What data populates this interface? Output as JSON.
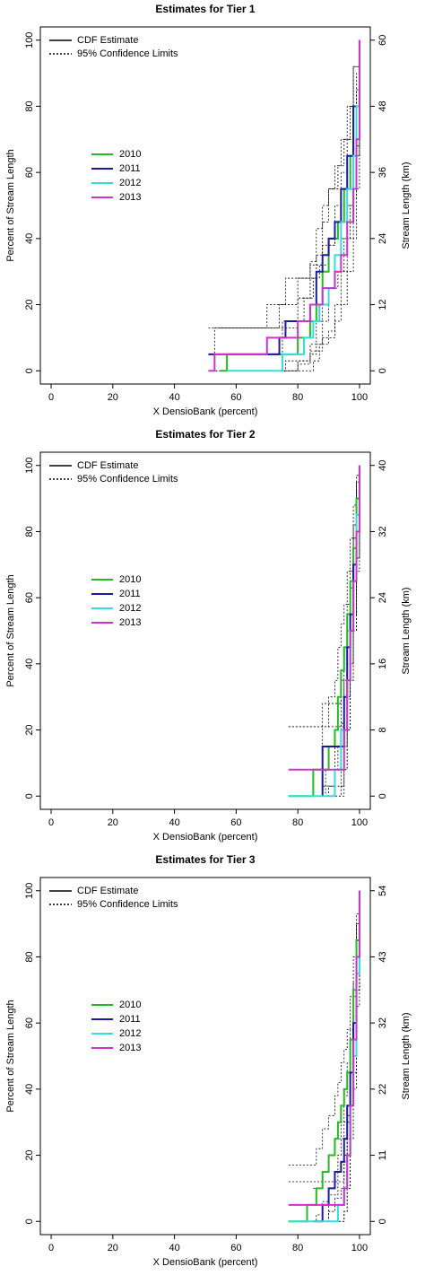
{
  "chart_data": [
    {
      "type": "step",
      "title": "Estimates for Tier 1",
      "x_label": "X DensioBank (percent)",
      "y_label": "Percent of Stream Length",
      "y2_label": "Stream Length (km)",
      "xlim": [
        -3.5,
        103.5
      ],
      "xticks": [
        0,
        20,
        40,
        60,
        80,
        100
      ],
      "ylim": [
        -4,
        104
      ],
      "yticks": [
        0,
        20,
        40,
        60,
        80,
        100
      ],
      "y2lim": [
        -2.4,
        62.4
      ],
      "y2ticks": [
        0,
        12,
        24,
        36,
        48,
        60
      ],
      "style_legend": [
        {
          "label": "CDF Estimate",
          "dash": false
        },
        {
          "label": "95% Confidence Limits",
          "dash": true
        }
      ],
      "series": [
        {
          "name": "2010",
          "color": "#22bb22",
          "x": [
            55,
            57,
            75,
            80,
            84,
            86,
            88,
            90,
            93,
            95,
            97,
            98,
            100
          ],
          "values": [
            0,
            5,
            5,
            10,
            15,
            20,
            30,
            40,
            45,
            55,
            65,
            80,
            100
          ],
          "lower": [
            0,
            0,
            0,
            2,
            5,
            8,
            15,
            25,
            30,
            40,
            50,
            65,
            100
          ],
          "upper": [
            13,
            13,
            13,
            22,
            28,
            35,
            45,
            55,
            62,
            70,
            80,
            92,
            100
          ]
        },
        {
          "name": "2011",
          "color": "#1a1aa0",
          "x": [
            51,
            74,
            76,
            82,
            84,
            86,
            88,
            90,
            92,
            94,
            96,
            98,
            100
          ],
          "values": [
            5,
            10,
            15,
            15,
            20,
            30,
            35,
            40,
            45,
            55,
            65,
            80,
            100
          ],
          "lower": [
            0,
            0,
            3,
            3,
            8,
            15,
            20,
            25,
            30,
            40,
            50,
            65,
            100
          ],
          "upper": [
            13,
            20,
            28,
            28,
            33,
            43,
            50,
            55,
            62,
            70,
            80,
            92,
            100
          ]
        },
        {
          "name": "2012",
          "color": "#33dddd",
          "x": [
            57,
            75,
            82,
            85,
            87,
            90,
            92,
            94,
            96,
            98,
            99,
            100
          ],
          "values": [
            0,
            5,
            10,
            15,
            20,
            25,
            35,
            45,
            55,
            65,
            80,
            100
          ],
          "lower": [
            0,
            0,
            0,
            3,
            8,
            12,
            20,
            30,
            40,
            52,
            68,
            100
          ],
          "upper": [
            5,
            15,
            22,
            28,
            32,
            38,
            50,
            60,
            70,
            80,
            90,
            100
          ]
        },
        {
          "name": "2013",
          "color": "#cc33cc",
          "x": [
            51,
            53,
            70,
            80,
            84,
            88,
            92,
            94,
            96,
            98,
            99,
            100
          ],
          "values": [
            0,
            5,
            10,
            15,
            20,
            25,
            30,
            35,
            45,
            55,
            70,
            100
          ],
          "lower": [
            0,
            0,
            0,
            3,
            6,
            10,
            15,
            20,
            30,
            40,
            55,
            100
          ],
          "upper": [
            5,
            13,
            20,
            28,
            32,
            38,
            45,
            50,
            60,
            70,
            85,
            100
          ]
        }
      ]
    },
    {
      "type": "step",
      "title": "Estimates for Tier 2",
      "x_label": "X DensioBank (percent)",
      "y_label": "Percent of Stream Length",
      "y2_label": "Stream Length (km)",
      "xlim": [
        -3.5,
        103.5
      ],
      "xticks": [
        0,
        20,
        40,
        60,
        80,
        100
      ],
      "ylim": [
        -4,
        104
      ],
      "yticks": [
        0,
        20,
        40,
        60,
        80,
        100
      ],
      "y2lim": [
        -1.6,
        41.6
      ],
      "y2ticks": [
        0,
        8,
        16,
        24,
        32,
        40
      ],
      "style_legend": [
        {
          "label": "CDF Estimate",
          "dash": false
        },
        {
          "label": "95% Confidence Limits",
          "dash": true
        }
      ],
      "series": [
        {
          "name": "2010",
          "color": "#22bb22",
          "x": [
            77,
            85,
            90,
            92,
            93,
            94,
            95,
            96,
            97,
            98,
            99,
            100
          ],
          "values": [
            0,
            8,
            15,
            20,
            30,
            38,
            45,
            55,
            65,
            75,
            90,
            100
          ],
          "lower": [
            0,
            0,
            3,
            8,
            15,
            22,
            30,
            40,
            50,
            62,
            80,
            100
          ],
          "upper": [
            21,
            21,
            30,
            35,
            45,
            52,
            58,
            68,
            78,
            88,
            97,
            100
          ]
        },
        {
          "name": "2011",
          "color": "#1a1aa0",
          "x": [
            88,
            88,
            94,
            95,
            96,
            97,
            98,
            99,
            100
          ],
          "values": [
            0,
            15,
            15,
            30,
            45,
            55,
            70,
            85,
            100
          ],
          "lower": [
            0,
            3,
            3,
            15,
            30,
            40,
            55,
            72,
            100
          ],
          "upper": [
            8,
            28,
            30,
            45,
            58,
            68,
            82,
            95,
            100
          ]
        },
        {
          "name": "2012",
          "color": "#33dddd",
          "x": [
            77,
            89,
            92,
            94,
            96,
            97,
            98,
            99,
            100
          ],
          "values": [
            0,
            0,
            8,
            20,
            35,
            50,
            65,
            85,
            100
          ],
          "lower": [
            0,
            0,
            0,
            8,
            20,
            35,
            50,
            72,
            100
          ],
          "upper": [
            0,
            8,
            20,
            35,
            50,
            63,
            78,
            95,
            100
          ]
        },
        {
          "name": "2013",
          "color": "#cc33cc",
          "x": [
            77,
            93,
            95,
            96,
            97,
            98,
            99,
            100
          ],
          "values": [
            8,
            8,
            20,
            35,
            50,
            65,
            80,
            100
          ],
          "lower": [
            0,
            0,
            8,
            20,
            35,
            50,
            68,
            100
          ],
          "upper": [
            21,
            21,
            35,
            50,
            63,
            78,
            92,
            100
          ]
        }
      ]
    },
    {
      "type": "step",
      "title": "Estimates for Tier 3",
      "x_label": "X DensioBank (percent)",
      "y_label": "Percent of Stream Length",
      "y2_label": "Stream Length (km)",
      "xlim": [
        -3.5,
        103.5
      ],
      "xticks": [
        0,
        20,
        40,
        60,
        80,
        100
      ],
      "ylim": [
        -4,
        104
      ],
      "yticks": [
        0,
        20,
        40,
        60,
        80,
        100
      ],
      "y2lim": [
        -2.16,
        56.16
      ],
      "y2ticks": [
        0,
        {
          "value": 10.8,
          "label": "11"
        },
        {
          "value": 21.6,
          "label": "22"
        },
        {
          "value": 32.4,
          "label": "32"
        },
        {
          "value": 43.2,
          "label": "43"
        },
        54
      ],
      "style_legend": [
        {
          "label": "CDF Estimate",
          "dash": false
        },
        {
          "label": "95% Confidence Limits",
          "dash": true
        }
      ],
      "series": [
        {
          "name": "2010",
          "color": "#22bb22",
          "x": [
            77,
            83,
            86,
            88,
            90,
            92,
            93,
            94,
            95,
            96,
            97,
            98,
            99,
            100
          ],
          "values": [
            0,
            5,
            10,
            15,
            20,
            25,
            30,
            35,
            40,
            45,
            55,
            70,
            85,
            100
          ],
          "lower": [
            0,
            0,
            2,
            6,
            10,
            15,
            20,
            25,
            30,
            35,
            45,
            60,
            75,
            100
          ],
          "upper": [
            17,
            17,
            22,
            28,
            32,
            38,
            42,
            48,
            52,
            58,
            68,
            80,
            93,
            100
          ]
        },
        {
          "name": "2011",
          "color": "#1a1aa0",
          "x": [
            85,
            88,
            90,
            92,
            94,
            95,
            96,
            97,
            98,
            99,
            100
          ],
          "values": [
            0,
            5,
            10,
            15,
            18,
            25,
            35,
            45,
            60,
            80,
            100
          ],
          "lower": [
            0,
            0,
            3,
            7,
            10,
            15,
            25,
            35,
            50,
            70,
            100
          ],
          "upper": [
            10,
            15,
            20,
            25,
            30,
            38,
            48,
            58,
            72,
            90,
            100
          ]
        },
        {
          "name": "2012",
          "color": "#33dddd",
          "x": [
            77,
            90,
            93,
            95,
            96,
            97,
            98,
            99,
            100
          ],
          "values": [
            0,
            0,
            5,
            10,
            20,
            35,
            50,
            75,
            100
          ],
          "lower": [
            0,
            0,
            0,
            3,
            10,
            25,
            40,
            65,
            100
          ],
          "upper": [
            0,
            8,
            15,
            20,
            32,
            48,
            62,
            85,
            100
          ]
        },
        {
          "name": "2013",
          "color": "#cc33cc",
          "x": [
            77,
            94,
            95,
            96,
            97,
            98,
            99,
            100
          ],
          "values": [
            5,
            5,
            10,
            20,
            35,
            55,
            80,
            100
          ],
          "lower": [
            0,
            0,
            3,
            10,
            25,
            45,
            70,
            100
          ],
          "upper": [
            12,
            12,
            18,
            30,
            48,
            68,
            90,
            100
          ]
        }
      ]
    }
  ]
}
